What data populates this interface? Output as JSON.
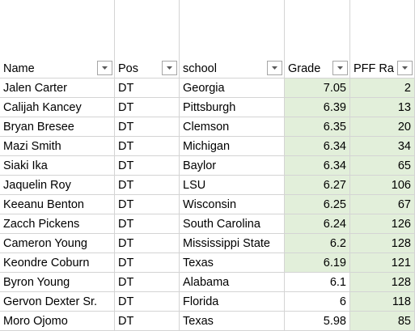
{
  "table": {
    "header": [
      "Name",
      "Pos",
      "school",
      "Grade",
      "PFF Ra"
    ],
    "rows": [
      [
        "Jalen Carter",
        "DT",
        "Georgia",
        7.05,
        2
      ],
      [
        "Calijah Kancey",
        "DT",
        "Pittsburgh",
        6.39,
        13
      ],
      [
        "Bryan Bresee",
        "DT",
        "Clemson",
        6.35,
        20
      ],
      [
        "Mazi Smith",
        "DT",
        "Michigan",
        6.34,
        34
      ],
      [
        "Siaki Ika",
        "DT",
        "Baylor",
        6.34,
        65
      ],
      [
        "Jaquelin Roy",
        "DT",
        "LSU",
        6.27,
        106
      ],
      [
        "Keeanu Benton",
        "DT",
        "Wisconsin",
        6.25,
        67
      ],
      [
        "Zacch Pickens",
        "DT",
        "South Carolina",
        6.24,
        126
      ],
      [
        "Cameron Young",
        "DT",
        "Mississippi State",
        6.2,
        128
      ],
      [
        "Keondre Coburn",
        "DT",
        "Texas",
        6.19,
        121
      ],
      [
        "Byron Young",
        "DT",
        "Alabama",
        6.1,
        128
      ],
      [
        "Gervon Dexter Sr.",
        "DT",
        "Florida",
        6,
        118
      ],
      [
        "Moro Ojomo",
        "DT",
        "Texas",
        5.98,
        85
      ]
    ]
  }
}
